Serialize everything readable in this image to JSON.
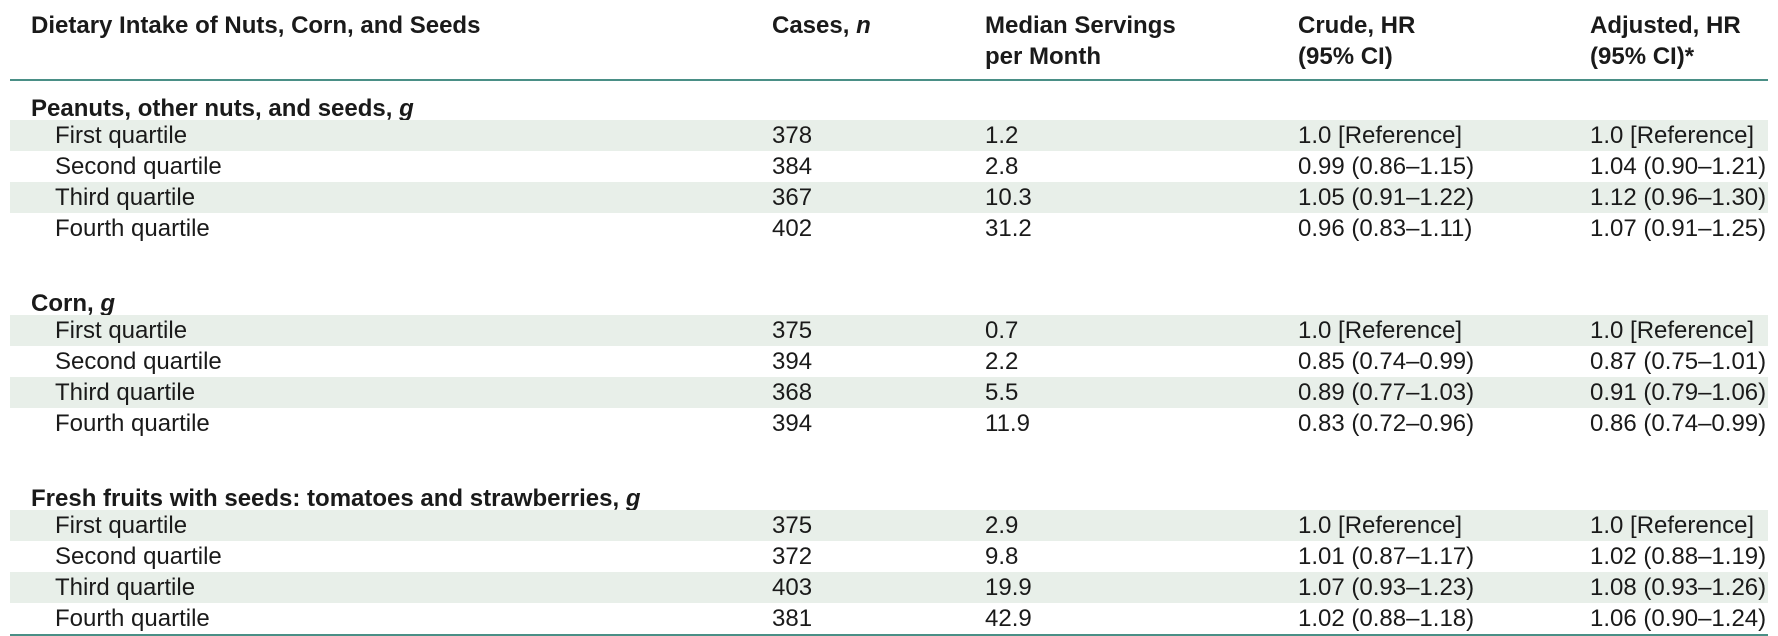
{
  "table": {
    "headers": {
      "label": "Dietary Intake of Nuts, Corn, and Seeds",
      "cases": "Cases, n",
      "median": "Median Servings\nper Month",
      "crude": "Crude, HR\n(95% CI)",
      "adjusted": "Adjusted, HR\n(95% CI)*"
    },
    "sections": [
      {
        "title": "Peanuts, other nuts, and seeds, g",
        "rows": [
          {
            "label": "First quartile",
            "cases": "378",
            "median": "1.2",
            "crude": "1.0 [Reference]",
            "adjusted": "1.0 [Reference]"
          },
          {
            "label": "Second quartile",
            "cases": "384",
            "median": "2.8",
            "crude": "0.99 (0.86–1.15)",
            "adjusted": "1.04 (0.90–1.21)"
          },
          {
            "label": "Third quartile",
            "cases": "367",
            "median": "10.3",
            "crude": "1.05 (0.91–1.22)",
            "adjusted": "1.12 (0.96–1.30)"
          },
          {
            "label": "Fourth quartile",
            "cases": "402",
            "median": "31.2",
            "crude": "0.96 (0.83–1.11)",
            "adjusted": "1.07 (0.91–1.25)"
          }
        ]
      },
      {
        "title": "Corn, g",
        "rows": [
          {
            "label": "First quartile",
            "cases": "375",
            "median": "0.7",
            "crude": "1.0 [Reference]",
            "adjusted": "1.0 [Reference]"
          },
          {
            "label": "Second quartile",
            "cases": "394",
            "median": "2.2",
            "crude": "0.85 (0.74–0.99)",
            "adjusted": "0.87 (0.75–1.01)"
          },
          {
            "label": "Third quartile",
            "cases": "368",
            "median": "5.5",
            "crude": "0.89 (0.77–1.03)",
            "adjusted": "0.91 (0.79–1.06)"
          },
          {
            "label": "Fourth quartile",
            "cases": "394",
            "median": "11.9",
            "crude": "0.83 (0.72–0.96)",
            "adjusted": "0.86 (0.74–0.99)"
          }
        ]
      },
      {
        "title": "Fresh fruits with seeds: tomatoes and strawberries, g",
        "rows": [
          {
            "label": "First quartile",
            "cases": "375",
            "median": "2.9",
            "crude": "1.0 [Reference]",
            "adjusted": "1.0 [Reference]"
          },
          {
            "label": "Second quartile",
            "cases": "372",
            "median": "9.8",
            "crude": "1.01 (0.87–1.17)",
            "adjusted": "1.02 (0.88–1.19)"
          },
          {
            "label": "Third quartile",
            "cases": "403",
            "median": "19.9",
            "crude": "1.07 (0.93–1.23)",
            "adjusted": "1.08 (0.93–1.26)"
          },
          {
            "label": "Fourth quartile",
            "cases": "381",
            "median": "42.9",
            "crude": "1.02 (0.88–1.18)",
            "adjusted": "1.06 (0.90–1.24)"
          }
        ]
      }
    ]
  },
  "colors": {
    "rule": "#4a8f86",
    "shade": "#e8efe9"
  }
}
